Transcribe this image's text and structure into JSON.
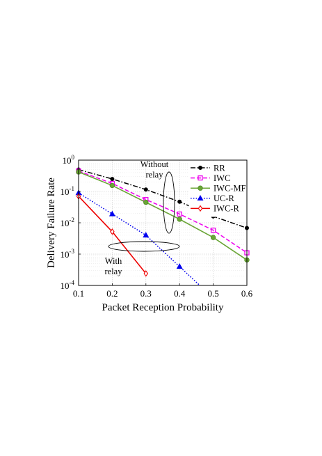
{
  "chart_data": {
    "type": "line",
    "title": "",
    "xlabel": "Packet Reception Probability",
    "ylabel": "Delivery Failure Rate",
    "x_scale": "linear",
    "y_scale": "log",
    "xlim": [
      0.1,
      0.6
    ],
    "ylim": [
      0.0001,
      1
    ],
    "x_ticks": [
      0.1,
      0.2,
      0.3,
      0.4,
      0.5,
      0.6
    ],
    "x_tick_labels": [
      "0.1",
      "0.2",
      "0.3",
      "0.4",
      "0.5",
      "0.6"
    ],
    "y_ticks": [
      0.0001,
      0.001,
      0.01,
      0.1,
      1
    ],
    "y_tick_labels": [
      {
        "base": "10",
        "exp": "-4"
      },
      {
        "base": "10",
        "exp": "-3"
      },
      {
        "base": "10",
        "exp": "-2"
      },
      {
        "base": "10",
        "exp": "-1"
      },
      {
        "base": "10",
        "exp": "0"
      }
    ],
    "grid": true,
    "legend_position": "top-right",
    "series": [
      {
        "name": "RR",
        "color": "#000000",
        "dash": "dashdot",
        "marker": "dot",
        "x": [
          0.1,
          0.2,
          0.3,
          0.4,
          0.5,
          0.6
        ],
        "y": [
          0.5,
          0.25,
          0.115,
          0.047,
          0.016,
          0.0068
        ]
      },
      {
        "name": "IWC",
        "color": "#ee00ee",
        "dash": "dashed",
        "marker": "square",
        "x": [
          0.1,
          0.2,
          0.3,
          0.4,
          0.5,
          0.6
        ],
        "y": [
          0.45,
          0.18,
          0.055,
          0.019,
          0.0058,
          0.0011
        ]
      },
      {
        "name": "IWC-MF",
        "color": "#6aa536",
        "dash": "solid",
        "marker": "circle",
        "x": [
          0.1,
          0.2,
          0.3,
          0.4,
          0.5,
          0.6
        ],
        "y": [
          0.42,
          0.155,
          0.045,
          0.013,
          0.0034,
          0.00065
        ]
      },
      {
        "name": "UC-R",
        "color": "#0000ee",
        "dash": "dotted",
        "marker": "triangle",
        "x": [
          0.1,
          0.2,
          0.3,
          0.4,
          0.46
        ],
        "y": [
          0.09,
          0.019,
          0.004,
          0.0004,
          0.0001
        ],
        "marker_count": 4
      },
      {
        "name": "IWC-R",
        "color": "#ee0000",
        "dash": "solid",
        "marker": "diamond",
        "x": [
          0.1,
          0.2,
          0.3
        ],
        "y": [
          0.07,
          0.0052,
          0.00024
        ]
      }
    ],
    "annotations": [
      {
        "lines": [
          "Without",
          "relay"
        ],
        "target": "upper-curves"
      },
      {
        "lines": [
          "With",
          "relay"
        ],
        "target": "lower-curves"
      }
    ]
  }
}
